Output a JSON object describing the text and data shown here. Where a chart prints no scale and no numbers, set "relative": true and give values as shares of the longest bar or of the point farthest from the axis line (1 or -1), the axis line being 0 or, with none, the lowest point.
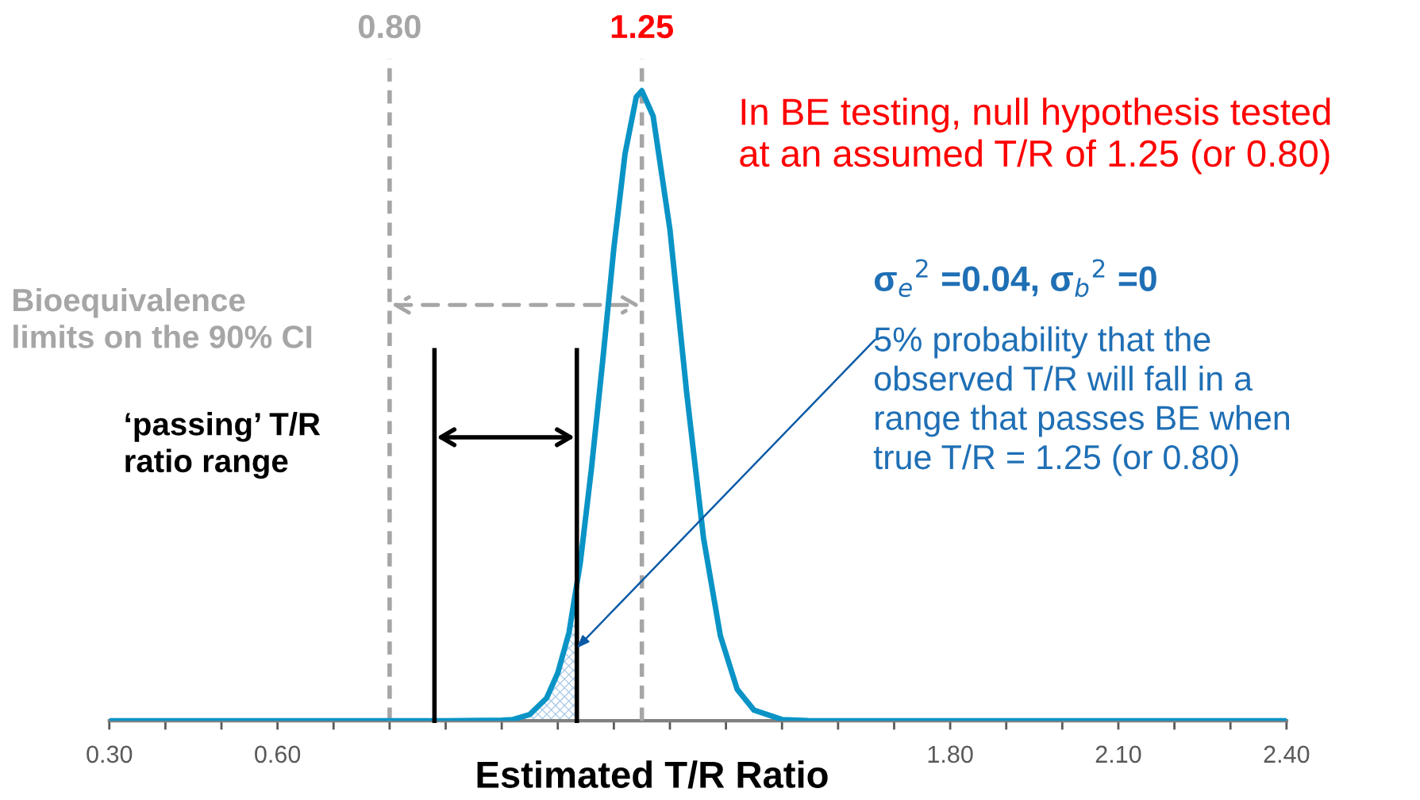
{
  "chart_data": {
    "type": "line",
    "relative": true,
    "xlabel": "Estimated T/R Ratio",
    "xlim": [
      0.3,
      2.4
    ],
    "xticks": [
      {
        "value": 0.3,
        "label": "0.30"
      },
      {
        "value": 0.4,
        "label": null
      },
      {
        "value": 0.5,
        "label": null
      },
      {
        "value": 0.6,
        "label": "0.60"
      },
      {
        "value": 0.7,
        "label": null
      },
      {
        "value": 0.8,
        "label": null
      },
      {
        "value": 0.9,
        "label": null
      },
      {
        "value": 1.0,
        "label": null
      },
      {
        "value": 1.1,
        "label": null
      },
      {
        "value": 1.2,
        "label": null
      },
      {
        "value": 1.3,
        "label": null
      },
      {
        "value": 1.4,
        "label": null
      },
      {
        "value": 1.5,
        "label": null
      },
      {
        "value": 1.6,
        "label": null
      },
      {
        "value": 1.7,
        "label": null
      },
      {
        "value": 1.8,
        "label": "1.80"
      },
      {
        "value": 1.9,
        "label": null
      },
      {
        "value": 2.0,
        "label": null
      },
      {
        "value": 2.1,
        "label": "2.10"
      },
      {
        "value": 2.2,
        "label": null
      },
      {
        "value": 2.3,
        "label": null
      },
      {
        "value": 2.4,
        "label": "2.40"
      }
    ],
    "series": [
      {
        "type": "area",
        "color": "#9dc3e6",
        "x": [
          1.02,
          1.05,
          1.08,
          1.1,
          1.12,
          1.134
        ],
        "values": [
          0.002,
          0.01,
          0.036,
          0.076,
          0.14,
          0.21
        ]
      },
      {
        "type": "line",
        "color": "#0a94c6",
        "x": [
          0.3,
          0.9,
          1.0,
          1.02,
          1.05,
          1.08,
          1.1,
          1.12,
          1.14,
          1.16,
          1.18,
          1.2,
          1.22,
          1.24,
          1.25,
          1.27,
          1.3,
          1.33,
          1.36,
          1.39,
          1.42,
          1.45,
          1.5,
          1.55,
          2.4
        ],
        "values": [
          0,
          0,
          0.001,
          0.002,
          0.01,
          0.036,
          0.076,
          0.14,
          0.25,
          0.4,
          0.57,
          0.75,
          0.9,
          0.99,
          1.0,
          0.96,
          0.78,
          0.52,
          0.29,
          0.135,
          0.05,
          0.017,
          0.002,
          0,
          0
        ]
      }
    ],
    "ref_lines": [
      {
        "axis": "x",
        "value": 0.8,
        "label": "0.80",
        "color": "#a6a6a6",
        "line_style": "dashed"
      },
      {
        "axis": "x",
        "value": 1.25,
        "label": "1.25",
        "color": "#a6a6a6",
        "line_style": "dashed"
      },
      {
        "axis": "x",
        "value": 0.88,
        "color": "#000000",
        "line_style": "solid"
      },
      {
        "axis": "x",
        "value": 1.134,
        "color": "#000000",
        "line_style": "solid"
      }
    ],
    "annotations": [
      "Bioequivalence\nlimits on the 90% CI",
      "‘passing’ T/R\nratio range",
      "In BE testing, null hypothesis tested\nat an assumed T/R of 1.25 (or 0.80)",
      "σ$_{e}$$^{2}$ =0.04, σ$_{b}$$^{2}$ =0",
      "5% probability that the\nobserved T/R will fall in a\nrange that passes BE when\ntrue T/R = 1.25 (or 0.80)"
    ]
  }
}
